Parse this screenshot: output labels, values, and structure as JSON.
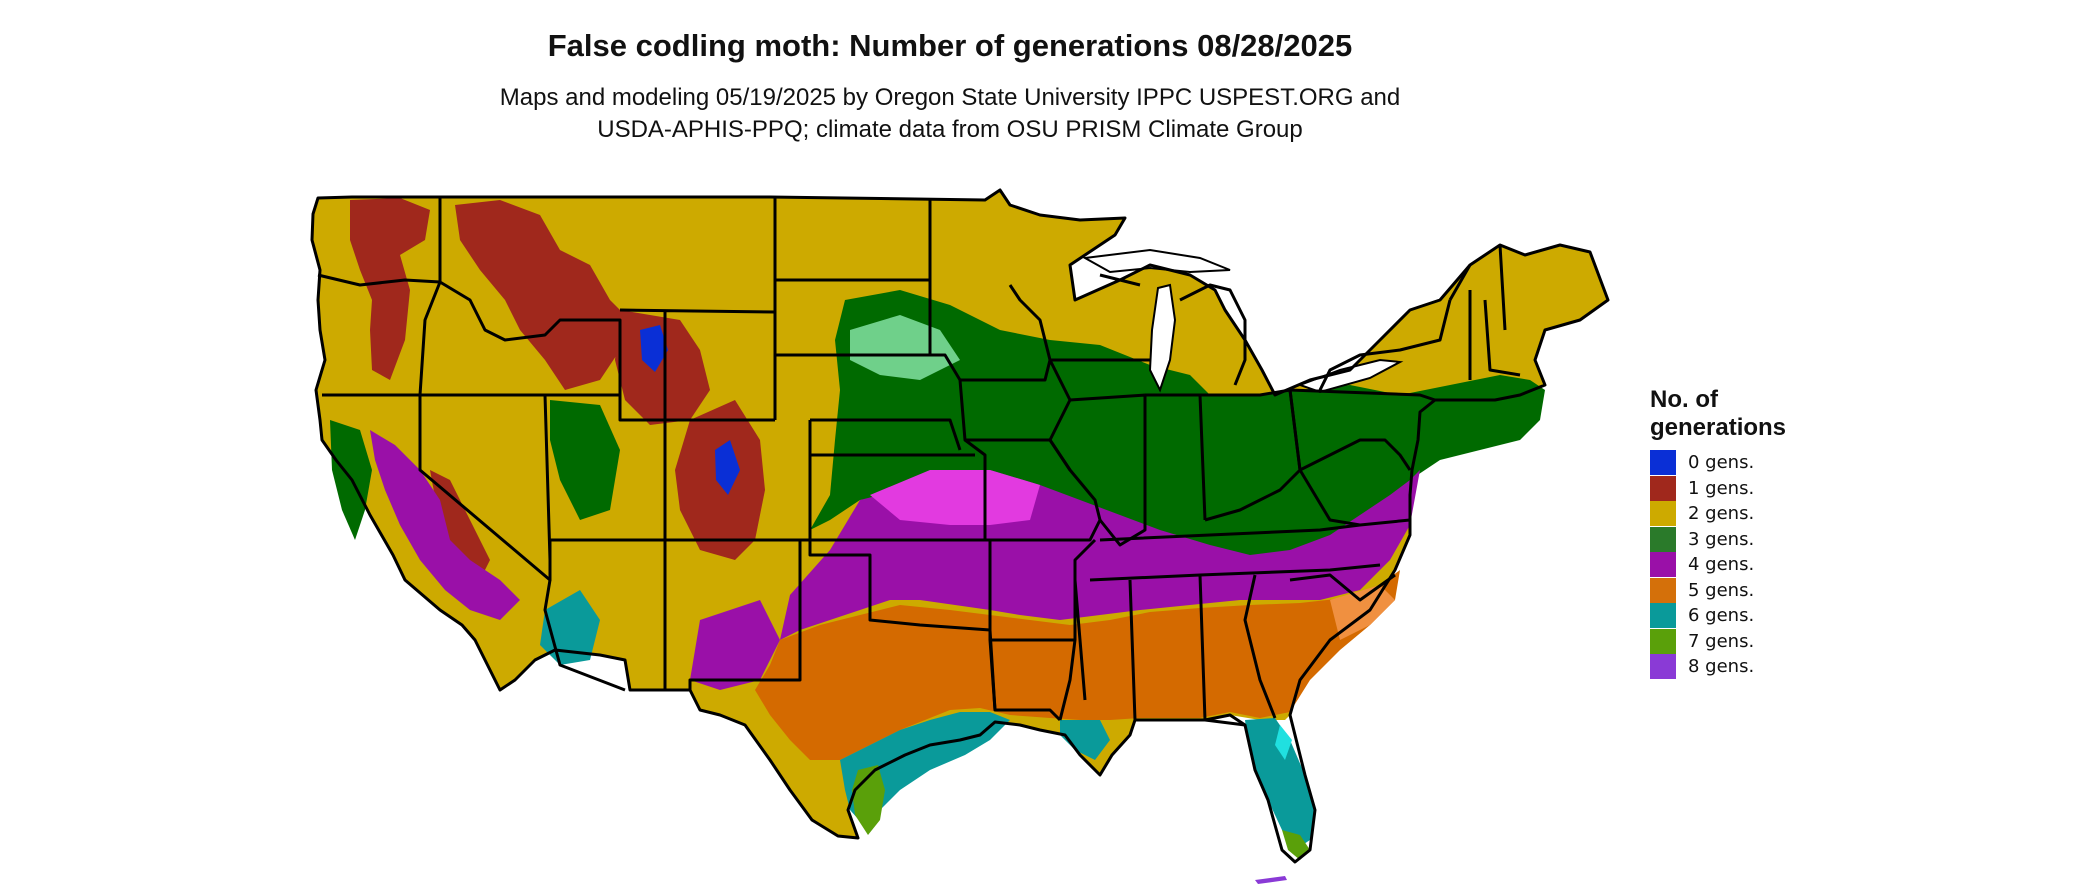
{
  "title": "False codling moth: Number of generations 08/28/2025",
  "subtitle_line1": "Maps and modeling 05/19/2025 by Oregon State University IPPC USPEST.ORG and",
  "subtitle_line2": "USDA-APHIS-PPQ; climate data from OSU PRISM Climate Group",
  "legend": {
    "title_line1": "No. of",
    "title_line2": "generations",
    "items": [
      {
        "label": "0 gens.",
        "color": "#0a2fd6"
      },
      {
        "label": "1 gens.",
        "color": "#a0281c"
      },
      {
        "label": "2 gens.",
        "color": "#cdaa00"
      },
      {
        "label": "3 gens.",
        "color": "#2a7a2a"
      },
      {
        "label": "4 gens.",
        "color": "#9a10a8"
      },
      {
        "label": "5 gens.",
        "color": "#d4700a"
      },
      {
        "label": "6 gens.",
        "color": "#0a9a9a"
      },
      {
        "label": "7 gens.",
        "color": "#5aa00a"
      },
      {
        "label": "8 gens.",
        "color": "#8a3ad6"
      }
    ]
  },
  "colors": {
    "gen0": "#0a2fd6",
    "gen1": "#a0281c",
    "gen2": "#cdaa00",
    "gen3": "#006a00",
    "gen4": "#9a10a8",
    "gen5": "#d46a00",
    "gen6": "#0a9a9a",
    "gen7": "#5aa00a",
    "gen8": "#8a3ad6",
    "gen3_light": "#6fd08a",
    "gen4_light": "#e23ae0",
    "gen5_light": "#f09040",
    "gen6_light": "#20e0e0",
    "border": "#000000",
    "water": "#ffffff"
  }
}
